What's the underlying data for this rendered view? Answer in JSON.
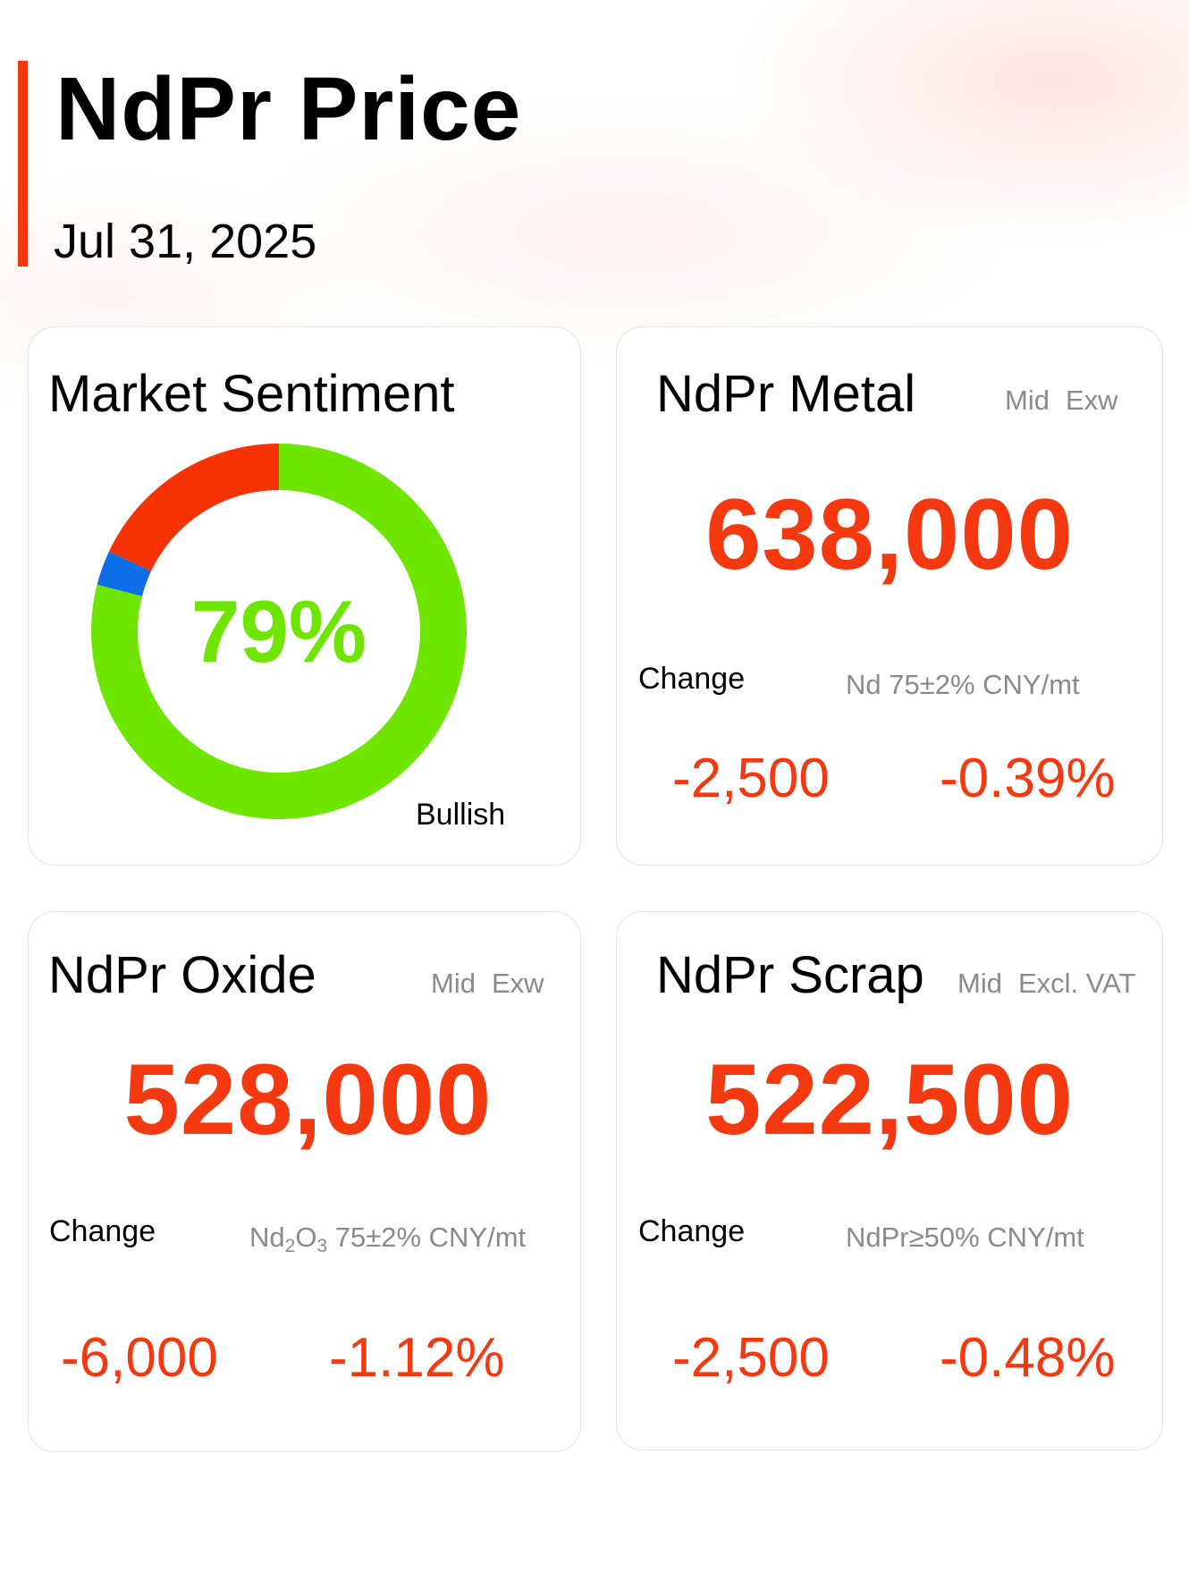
{
  "header": {
    "title": "NdPr Price",
    "date": "Jul 31, 2025"
  },
  "sentiment": {
    "title": "Market Sentiment",
    "percent_label": "79%",
    "caption": "Bullish",
    "segments": [
      {
        "name": "bullish",
        "fraction": 0.79,
        "color": "#6ee602"
      },
      {
        "name": "neutral",
        "fraction": 0.03,
        "color": "#0d6fe8"
      },
      {
        "name": "bearish",
        "fraction": 0.18,
        "color": "#f73205"
      }
    ]
  },
  "metal": {
    "title": "NdPr Metal",
    "tag1": "Mid",
    "tag2": "Exw",
    "price": "638,000",
    "change_label": "Change",
    "spec": "Nd 75±2% CNY/mt",
    "change_abs": "-2,500",
    "change_pct": "-0.39%"
  },
  "oxide": {
    "title": "NdPr Oxide",
    "tag1": "Mid",
    "tag2": "Exw",
    "price": "528,000",
    "change_label": "Change",
    "spec_a": "Nd",
    "spec_sub1": "2",
    "spec_b": "O",
    "spec_sub2": "3",
    "spec_c": " 75±2% CNY/mt",
    "change_abs": "-6,000",
    "change_pct": "-1.12%"
  },
  "scrap": {
    "title": "NdPr Scrap",
    "tag1": "Mid",
    "tag2": "Excl. VAT",
    "price": "522,500",
    "change_label": "Change",
    "spec": "NdPr≥50% CNY/mt",
    "change_abs": "-2,500",
    "change_pct": "-0.48%"
  },
  "colors": {
    "accent": "#f4380f",
    "bullish_green": "#6ee602"
  }
}
